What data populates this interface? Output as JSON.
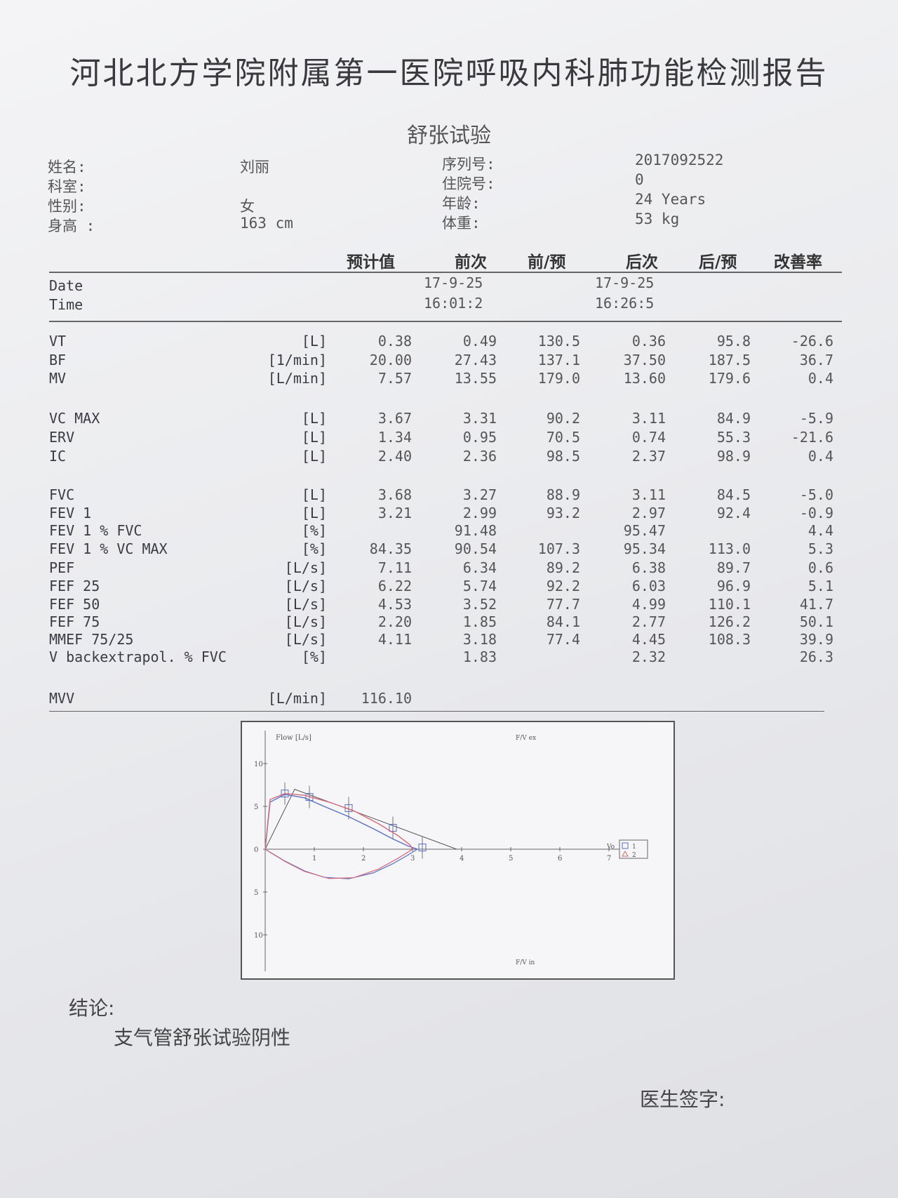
{
  "report": {
    "title": "河北北方学院附属第一医院呼吸内科肺功能检测报告",
    "subtitle": "舒张试验"
  },
  "patient": {
    "name_label": "姓名:",
    "name": "刘丽",
    "dept_label": "科室:",
    "sex_label": "性别:",
    "sex": "女",
    "height_label": "身高 :",
    "height": "163 cm",
    "serial_label": "序列号:",
    "serial": "2017092522",
    "inpatient_label": "住院号:",
    "inpatient": "0",
    "age_label": "年龄:",
    "age": "24 Years",
    "weight_label": "体重:",
    "weight": "53 kg"
  },
  "columns": [
    "预计值",
    "前次",
    "前/预",
    "后次",
    "后/预",
    "改善率"
  ],
  "session": {
    "date_label": "Date",
    "time_label": "Time",
    "pre_date": "17-9-25",
    "pre_time": "16:01:2",
    "post_date": "17-9-25",
    "post_time": "16:26:5"
  },
  "rows": [
    {
      "name": "VT",
      "unit": "[L]",
      "pred": "0.38",
      "pre": "0.49",
      "pre_pct": "130.5",
      "post": "0.36",
      "post_pct": "95.8",
      "improve": "-26.6"
    },
    {
      "name": "BF",
      "unit": "[1/min]",
      "pred": "20.00",
      "pre": "27.43",
      "pre_pct": "137.1",
      "post": "37.50",
      "post_pct": "187.5",
      "improve": "36.7"
    },
    {
      "name": "MV",
      "unit": "[L/min]",
      "pred": "7.57",
      "pre": "13.55",
      "pre_pct": "179.0",
      "post": "13.60",
      "post_pct": "179.6",
      "improve": "0.4"
    },
    {
      "name": "VC MAX",
      "unit": "[L]",
      "pred": "3.67",
      "pre": "3.31",
      "pre_pct": "90.2",
      "post": "3.11",
      "post_pct": "84.9",
      "improve": "-5.9"
    },
    {
      "name": "ERV",
      "unit": "[L]",
      "pred": "1.34",
      "pre": "0.95",
      "pre_pct": "70.5",
      "post": "0.74",
      "post_pct": "55.3",
      "improve": "-21.6"
    },
    {
      "name": "IC",
      "unit": "[L]",
      "pred": "2.40",
      "pre": "2.36",
      "pre_pct": "98.5",
      "post": "2.37",
      "post_pct": "98.9",
      "improve": "0.4"
    },
    {
      "name": "FVC",
      "unit": "[L]",
      "pred": "3.68",
      "pre": "3.27",
      "pre_pct": "88.9",
      "post": "3.11",
      "post_pct": "84.5",
      "improve": "-5.0"
    },
    {
      "name": "FEV 1",
      "unit": "[L]",
      "pred": "3.21",
      "pre": "2.99",
      "pre_pct": "93.2",
      "post": "2.97",
      "post_pct": "92.4",
      "improve": "-0.9"
    },
    {
      "name": "FEV 1 % FVC",
      "unit": "[%]",
      "pred": "",
      "pre": "91.48",
      "pre_pct": "",
      "post": "95.47",
      "post_pct": "",
      "improve": "4.4"
    },
    {
      "name": "FEV 1 % VC MAX",
      "unit": "[%]",
      "pred": "84.35",
      "pre": "90.54",
      "pre_pct": "107.3",
      "post": "95.34",
      "post_pct": "113.0",
      "improve": "5.3"
    },
    {
      "name": "PEF",
      "unit": "[L/s]",
      "pred": "7.11",
      "pre": "6.34",
      "pre_pct": "89.2",
      "post": "6.38",
      "post_pct": "89.7",
      "improve": "0.6"
    },
    {
      "name": "FEF 25",
      "unit": "[L/s]",
      "pred": "6.22",
      "pre": "5.74",
      "pre_pct": "92.2",
      "post": "6.03",
      "post_pct": "96.9",
      "improve": "5.1"
    },
    {
      "name": "FEF 50",
      "unit": "[L/s]",
      "pred": "4.53",
      "pre": "3.52",
      "pre_pct": "77.7",
      "post": "4.99",
      "post_pct": "110.1",
      "improve": "41.7"
    },
    {
      "name": "FEF 75",
      "unit": "[L/s]",
      "pred": "2.20",
      "pre": "1.85",
      "pre_pct": "84.1",
      "post": "2.77",
      "post_pct": "126.2",
      "improve": "50.1"
    },
    {
      "name": "MMEF 75/25",
      "unit": "[L/s]",
      "pred": "4.11",
      "pre": "3.18",
      "pre_pct": "77.4",
      "post": "4.45",
      "post_pct": "108.3",
      "improve": "39.9"
    },
    {
      "name": "V backextrapol. % FVC",
      "unit": "[%]",
      "pred": "",
      "pre": "1.83",
      "pre_pct": "",
      "post": "2.32",
      "post_pct": "",
      "improve": "26.3"
    },
    {
      "name": "MVV",
      "unit": "[L/min]",
      "pred": "116.10",
      "pre": "",
      "pre_pct": "",
      "post": "",
      "post_pct": "",
      "improve": ""
    }
  ],
  "chart_data": {
    "type": "line",
    "ylabel": "Flow [L/s]",
    "top_label": "F/V ex",
    "bottom_label": "F/V in",
    "legend": [
      "1",
      "2"
    ],
    "vol_label": "Vo",
    "xlim": [
      0,
      7.5
    ],
    "ylim": [
      -12,
      12
    ],
    "x_ticks": [
      "1",
      "2",
      "3",
      "4",
      "5",
      "6",
      "7"
    ],
    "y_ticks": [
      "10",
      "5",
      "0",
      "5",
      "10"
    ],
    "colors": {
      "series1": "#5a6fc4",
      "series2": "#d46a7a",
      "predicted": "#555555"
    },
    "series": [
      {
        "name": "1",
        "x": [
          0,
          0.1,
          0.4,
          0.8,
          1.2,
          1.7,
          2.2,
          2.6,
          2.9,
          3.1
        ],
        "y": [
          0,
          5.5,
          6.4,
          6.0,
          5.0,
          3.8,
          2.4,
          1.2,
          0.4,
          0
        ]
      },
      {
        "name": "2",
        "x": [
          0,
          0.1,
          0.4,
          0.8,
          1.3,
          1.8,
          2.3,
          2.7,
          2.95,
          3.0
        ],
        "y": [
          0,
          5.8,
          6.5,
          6.3,
          5.5,
          4.5,
          3.0,
          1.6,
          0.5,
          0
        ]
      }
    ],
    "predicted": {
      "x": [
        0.4,
        0.9,
        1.7,
        2.6,
        3.2
      ],
      "y": [
        6.5,
        6.1,
        4.8,
        2.5,
        0.2
      ]
    }
  },
  "conclusion": {
    "label": "结论:",
    "text": "支气管舒张试验阴性"
  },
  "signature_label": "医生签字:"
}
